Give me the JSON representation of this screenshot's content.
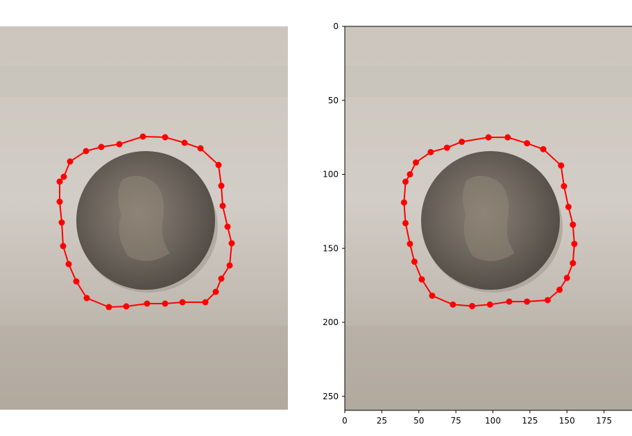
{
  "left_panel": {
    "contour_points": [
      [
        206,
        197
      ],
      [
        238,
        198
      ],
      [
        266,
        206
      ],
      [
        289,
        214
      ],
      [
        315,
        238
      ],
      [
        319,
        268
      ],
      [
        321,
        297
      ],
      [
        328,
        327
      ],
      [
        334,
        351
      ],
      [
        331,
        383
      ],
      [
        319,
        402
      ],
      [
        311,
        421
      ],
      [
        296,
        436
      ],
      [
        263,
        436
      ],
      [
        238,
        438
      ],
      [
        212,
        438
      ],
      [
        182,
        442
      ],
      [
        157,
        443
      ],
      [
        125,
        430
      ],
      [
        110,
        406
      ],
      [
        99,
        381
      ],
      [
        91,
        355
      ],
      [
        89,
        321
      ],
      [
        86,
        291
      ],
      [
        86,
        262
      ],
      [
        92,
        255
      ],
      [
        101,
        233
      ],
      [
        124,
        218
      ],
      [
        146,
        212
      ],
      [
        172,
        208
      ]
    ]
  },
  "right_panel": {
    "x_ticks": [
      "0",
      "25",
      "50",
      "75",
      "100",
      "125",
      "150",
      "175"
    ],
    "y_ticks": [
      "0",
      "50",
      "100",
      "150",
      "200",
      "250"
    ],
    "x_tick_values": [
      0,
      25,
      50,
      75,
      100,
      125,
      150,
      175
    ],
    "y_tick_values": [
      0,
      50,
      100,
      150,
      200,
      250
    ],
    "contour_points": [
      [
        97,
        75
      ],
      [
        110,
        75
      ],
      [
        123,
        79
      ],
      [
        134,
        83
      ],
      [
        146,
        94
      ],
      [
        148,
        108
      ],
      [
        151,
        122
      ],
      [
        154,
        134
      ],
      [
        155,
        147
      ],
      [
        154,
        160
      ],
      [
        150,
        170
      ],
      [
        145,
        178
      ],
      [
        137,
        185
      ],
      [
        123,
        186
      ],
      [
        111,
        186
      ],
      [
        98,
        188
      ],
      [
        86,
        189
      ],
      [
        73,
        188
      ],
      [
        59,
        182
      ],
      [
        52,
        171
      ],
      [
        47,
        159
      ],
      [
        44,
        147
      ],
      [
        41,
        133
      ],
      [
        40,
        119
      ],
      [
        41,
        105
      ],
      [
        44,
        100
      ],
      [
        48,
        92
      ],
      [
        58,
        85
      ],
      [
        69,
        82
      ],
      [
        79,
        78
      ]
    ]
  },
  "colors": {
    "contour": "#ff0000",
    "background_surface": "#cdc7bf",
    "coin": "#6e665e"
  }
}
